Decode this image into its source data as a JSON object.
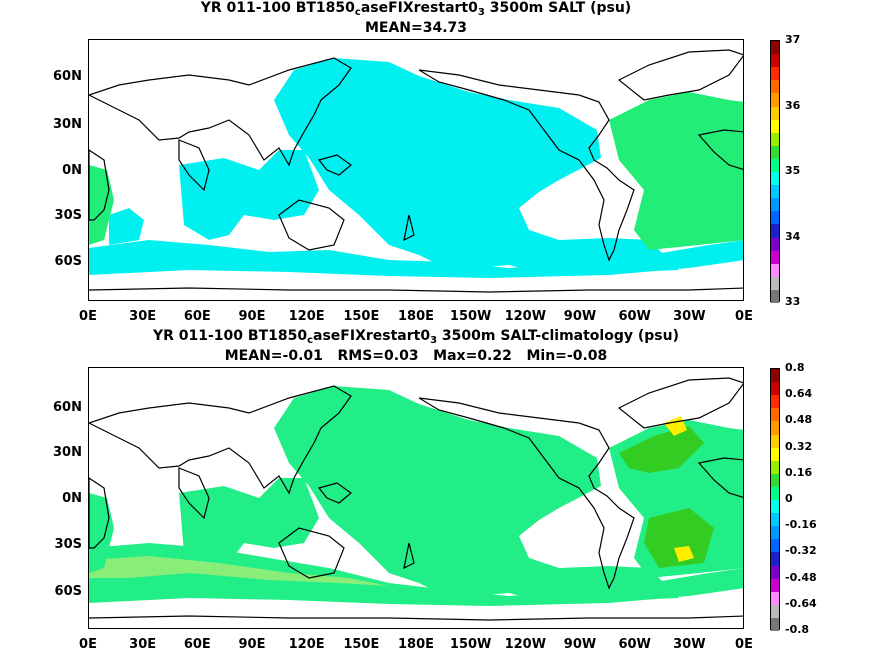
{
  "panel_top": {
    "title_prefix": "YR 011-100 BT1850",
    "title_sub1": "c",
    "title_mid": "aseFIXrestart0",
    "title_sub2": "3",
    "title_suffix": " 3500m SALT (psu)",
    "stats": "MEAN=34.73",
    "colorbar_labels": [
      "37",
      "36",
      "35",
      "34",
      "33"
    ],
    "colorbar_colors": [
      "#8b0000",
      "#cc0000",
      "#ff2a00",
      "#ff6a00",
      "#ff9a00",
      "#ffcc00",
      "#ffff00",
      "#99ee00",
      "#33dd33",
      "#00ff88",
      "#00ffee",
      "#00c8ff",
      "#0099ff",
      "#0066ff",
      "#1f1fcc",
      "#7a00cc",
      "#cc00cc",
      "#ff88ff",
      "#bbbbbb",
      "#777777"
    ]
  },
  "panel_bottom": {
    "title_prefix": "YR 011-100 BT1850",
    "title_sub1": "c",
    "title_mid": "aseFIXrestart0",
    "title_sub2": "3",
    "title_suffix": " 3500m SALT-climatology (psu)",
    "stats": "MEAN=-0.01   RMS=0.03   Max=0.22   Min=-0.08",
    "colorbar_labels": [
      "0.8",
      "0.64",
      "0.48",
      "0.32",
      "0.16",
      "0",
      "-0.16",
      "-0.32",
      "-0.48",
      "-0.64",
      "-0.8"
    ],
    "colorbar_colors": [
      "#8b0000",
      "#cc0000",
      "#ff2a00",
      "#ff6a00",
      "#ff9a00",
      "#ffcc00",
      "#ffff00",
      "#99ee00",
      "#33dd33",
      "#00ff88",
      "#00ffee",
      "#00c8ff",
      "#0099ff",
      "#0066ff",
      "#1f1fcc",
      "#7a00cc",
      "#cc00cc",
      "#ff88ff",
      "#bbbbbb",
      "#777777"
    ]
  },
  "lat_labels": [
    "60N",
    "30N",
    "0N",
    "30S",
    "60S"
  ],
  "lon_labels": [
    "0E",
    "30E",
    "60E",
    "90E",
    "120E",
    "150E",
    "180E",
    "150W",
    "120W",
    "90W",
    "60W",
    "30W",
    "0E"
  ],
  "colors": {
    "top_ocean": "#00f0f0",
    "top_high": "#22ee77",
    "bottom_ocean": "#22ee88",
    "bottom_band": "#88ee77",
    "bottom_high": "#33cc22",
    "bottom_peak": "#ffee00",
    "land_outline": "#000000"
  }
}
